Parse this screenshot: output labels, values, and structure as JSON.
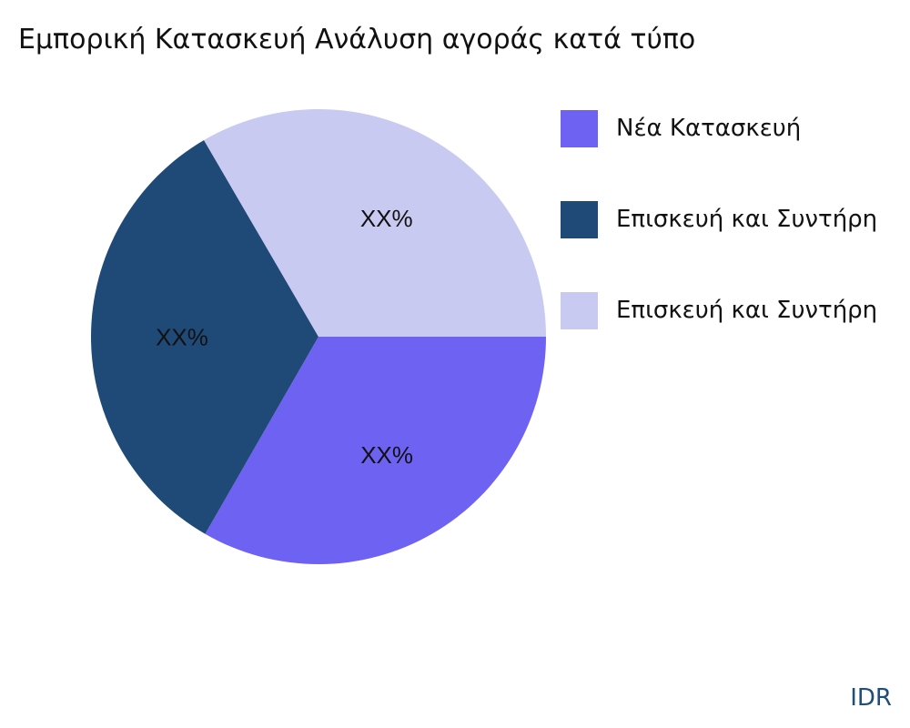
{
  "chart_data": {
    "type": "pie",
    "title": "Εμπορική Κατασκευή Ανάλυση αγοράς κατά τύπο",
    "slices": [
      {
        "name": "Νέα Κατασκευή",
        "value": 33.3,
        "label": "XX%",
        "color": "#6e62f2"
      },
      {
        "name": "Επισκευή και Συντήρη",
        "value": 33.3,
        "label": "XX%",
        "color": "#1f4a78"
      },
      {
        "name": "Επισκευή και Συντήρη",
        "value": 33.4,
        "label": "XX%",
        "color": "#c9caf1"
      }
    ],
    "legend_position": "right"
  },
  "brand": "IDR"
}
